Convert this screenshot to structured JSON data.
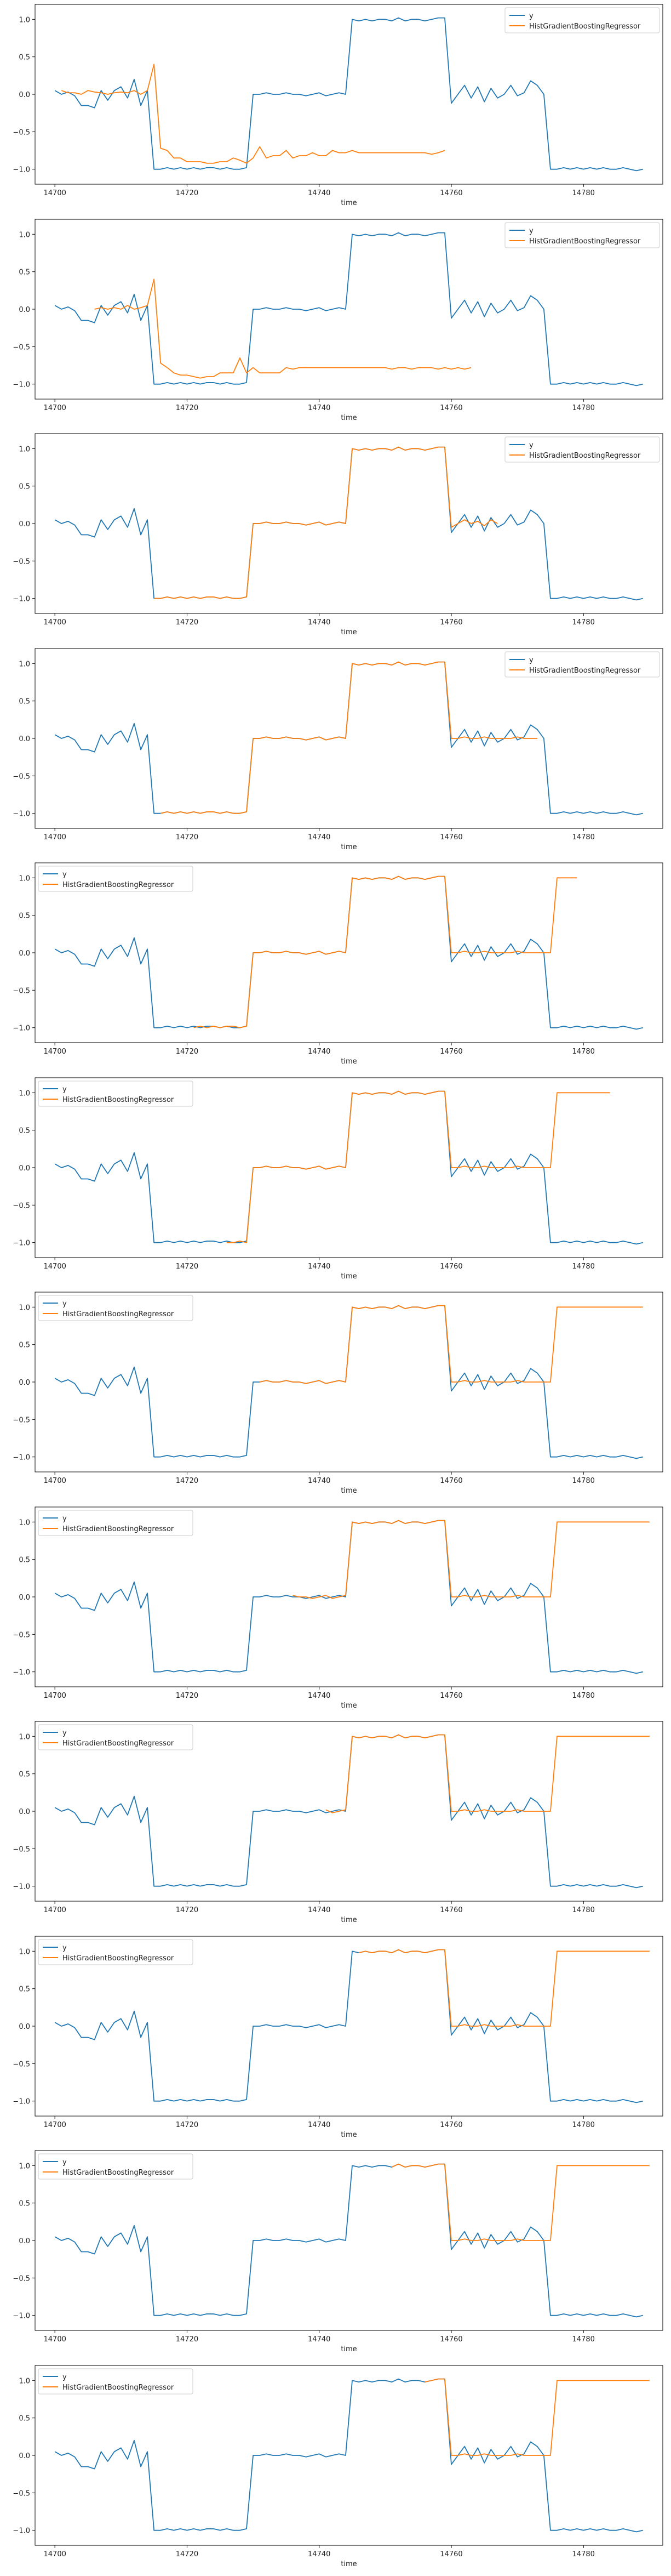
{
  "colors": {
    "y": "#1f77b4",
    "pred": "#ff7f0e"
  },
  "y_series": [
    0.05,
    0.0,
    0.03,
    -0.02,
    -0.15,
    -0.15,
    -0.18,
    0.05,
    -0.08,
    0.05,
    0.1,
    -0.05,
    0.2,
    -0.15,
    0.05,
    -1.0,
    -1.0,
    -0.98,
    -1.0,
    -0.98,
    -1.0,
    -0.98,
    -1.0,
    -0.98,
    -0.98,
    -1.0,
    -0.98,
    -1.0,
    -1.0,
    -0.98,
    0.0,
    0.0,
    0.02,
    0.0,
    0.0,
    0.02,
    0.0,
    0.0,
    -0.02,
    0.0,
    0.02,
    -0.02,
    0.0,
    0.02,
    0.0,
    1.0,
    0.98,
    1.0,
    0.98,
    1.0,
    1.0,
    0.98,
    1.02,
    0.98,
    1.0,
    1.0,
    0.98,
    1.0,
    1.02,
    1.02,
    -0.12,
    0.0,
    0.12,
    -0.05,
    0.1,
    -0.1,
    0.08,
    -0.05,
    0.0,
    0.12,
    -0.02,
    0.02,
    0.18,
    0.12,
    0.0,
    -1.0,
    -1.0,
    -0.98,
    -1.0,
    -0.98,
    -1.0,
    -0.98,
    -1.0,
    -0.98,
    -1.0,
    -1.0,
    -0.98,
    -1.0,
    -1.02,
    -1.0
  ],
  "chart_data": [
    {
      "type": "line",
      "xlabel": "time",
      "legend": "top-right",
      "xlim": [
        14697,
        14792
      ],
      "ylim": [
        -1.2,
        1.2
      ],
      "xticks": [
        14700,
        14720,
        14740,
        14760,
        14780
      ],
      "yticks": [
        -1.0,
        -0.5,
        0.0,
        0.5,
        1.0
      ],
      "series": [
        {
          "name": "y",
          "x_start": 14700,
          "values_ref": "y_series"
        },
        {
          "name": "HistGradientBoostingRegressor",
          "x_start": 14701,
          "values": [
            0.05,
            0.02,
            0.02,
            0.0,
            0.05,
            0.03,
            0.02,
            0.0,
            0.02,
            0.03,
            0.02,
            0.05,
            0.0,
            0.05,
            0.4,
            -0.72,
            -0.75,
            -0.85,
            -0.85,
            -0.9,
            -0.9,
            -0.9,
            -0.92,
            -0.92,
            -0.9,
            -0.9,
            -0.85,
            -0.88,
            -0.92,
            -0.85,
            -0.7,
            -0.85,
            -0.82,
            -0.82,
            -0.75,
            -0.85,
            -0.82,
            -0.82,
            -0.78,
            -0.82,
            -0.82,
            -0.75,
            -0.78,
            -0.78,
            -0.75,
            -0.78,
            -0.78,
            -0.78,
            -0.78,
            -0.78,
            -0.78,
            -0.78,
            -0.78,
            -0.78,
            -0.78,
            -0.78,
            -0.8,
            -0.78,
            -0.75
          ]
        }
      ]
    },
    {
      "type": "line",
      "xlabel": "time",
      "legend": "top-right",
      "xlim": [
        14697,
        14792
      ],
      "ylim": [
        -1.2,
        1.2
      ],
      "xticks": [
        14700,
        14720,
        14740,
        14760,
        14780
      ],
      "yticks": [
        -1.0,
        -0.5,
        0.0,
        0.5,
        1.0
      ],
      "series": [
        {
          "name": "y",
          "x_start": 14700,
          "values_ref": "y_series"
        },
        {
          "name": "HistGradientBoostingRegressor",
          "x_start": 14706,
          "values": [
            0.0,
            0.02,
            0.0,
            0.02,
            0.0,
            0.05,
            0.0,
            0.02,
            0.05,
            0.4,
            -0.72,
            -0.78,
            -0.85,
            -0.88,
            -0.88,
            -0.9,
            -0.92,
            -0.9,
            -0.9,
            -0.85,
            -0.85,
            -0.85,
            -0.65,
            -0.85,
            -0.78,
            -0.85,
            -0.85,
            -0.85,
            -0.85,
            -0.78,
            -0.8,
            -0.78,
            -0.78,
            -0.78,
            -0.78,
            -0.78,
            -0.78,
            -0.78,
            -0.78,
            -0.78,
            -0.78,
            -0.78,
            -0.78,
            -0.78,
            -0.78,
            -0.8,
            -0.78,
            -0.78,
            -0.8,
            -0.78,
            -0.78,
            -0.78,
            -0.8,
            -0.78,
            -0.8,
            -0.78,
            -0.8,
            -0.78
          ]
        }
      ]
    },
    {
      "type": "line",
      "xlabel": "time",
      "legend": "top-right",
      "xlim": [
        14697,
        14792
      ],
      "ylim": [
        -1.2,
        1.2
      ],
      "xticks": [
        14700,
        14720,
        14740,
        14760,
        14780
      ],
      "yticks": [
        -1.0,
        -0.5,
        0.0,
        0.5,
        1.0
      ],
      "series": [
        {
          "name": "y",
          "x_start": 14700,
          "values_ref": "y_series"
        },
        {
          "name": "HistGradientBoostingRegressor",
          "x_start": 14715,
          "values": [
            -1.0,
            -1.0,
            -0.98,
            -1.0,
            -0.98,
            -1.0,
            -0.98,
            -1.0,
            -0.98,
            -0.98,
            -1.0,
            -0.98,
            -1.0,
            -1.0,
            -0.98,
            0.0,
            0.0,
            0.02,
            0.0,
            0.0,
            0.02,
            0.0,
            0.0,
            -0.02,
            0.0,
            0.02,
            -0.02,
            0.0,
            0.02,
            0.0,
            1.0,
            0.98,
            1.0,
            0.98,
            1.0,
            1.0,
            0.98,
            1.02,
            0.98,
            1.0,
            1.0,
            0.98,
            1.0,
            1.02,
            1.02,
            -0.05,
            0.0,
            0.05,
            0.0,
            0.03,
            -0.03,
            0.05,
            0.0
          ]
        }
      ]
    },
    {
      "type": "line",
      "xlabel": "time",
      "legend": "top-right",
      "xlim": [
        14697,
        14792
      ],
      "ylim": [
        -1.2,
        1.2
      ],
      "xticks": [
        14700,
        14720,
        14740,
        14760,
        14780
      ],
      "yticks": [
        -1.0,
        -0.5,
        0.0,
        0.5,
        1.0
      ],
      "series": [
        {
          "name": "y",
          "x_start": 14700,
          "values_ref": "y_series"
        },
        {
          "name": "HistGradientBoostingRegressor",
          "x_start": 14716,
          "values": [
            -1.0,
            -0.98,
            -1.0,
            -0.98,
            -1.0,
            -0.98,
            -1.0,
            -0.98,
            -0.98,
            -1.0,
            -0.98,
            -1.0,
            -1.0,
            -0.98,
            0.0,
            0.0,
            0.02,
            0.0,
            0.0,
            0.02,
            0.0,
            0.0,
            -0.02,
            0.0,
            0.02,
            -0.02,
            0.0,
            0.02,
            0.0,
            1.0,
            0.98,
            1.0,
            0.98,
            1.0,
            1.0,
            0.98,
            1.02,
            0.98,
            1.0,
            1.0,
            0.98,
            1.0,
            1.02,
            1.02,
            0.0,
            0.0,
            0.02,
            0.0,
            0.0,
            0.02,
            0.0,
            0.0,
            0.0,
            0.0,
            0.02,
            0.0,
            0.0,
            0.0
          ]
        }
      ]
    },
    {
      "type": "line",
      "xlabel": "time",
      "legend": "top-left",
      "xlim": [
        14697,
        14792
      ],
      "ylim": [
        -1.2,
        1.2
      ],
      "xticks": [
        14700,
        14720,
        14740,
        14760,
        14780
      ],
      "yticks": [
        -1.0,
        -0.5,
        0.0,
        0.5,
        1.0
      ],
      "series": [
        {
          "name": "y",
          "x_start": 14700,
          "values_ref": "y_series"
        },
        {
          "name": "HistGradientBoostingRegressor",
          "x_start": 14721,
          "values": [
            -1.0,
            -0.98,
            -1.0,
            -0.98,
            -1.0,
            -0.98,
            -0.98,
            -1.0,
            -0.98,
            0.0,
            0.0,
            0.02,
            0.0,
            0.0,
            0.02,
            0.0,
            0.0,
            -0.02,
            0.0,
            0.02,
            -0.02,
            0.0,
            0.02,
            0.0,
            1.0,
            0.98,
            1.0,
            0.98,
            1.0,
            1.0,
            0.98,
            1.02,
            0.98,
            1.0,
            1.0,
            0.98,
            1.0,
            1.02,
            1.02,
            0.0,
            0.0,
            0.02,
            0.0,
            0.0,
            0.02,
            0.0,
            0.0,
            0.0,
            0.0,
            0.02,
            0.0,
            0.0,
            0.0,
            0.0,
            0.0,
            1.0,
            1.0,
            1.0,
            1.0
          ]
        }
      ]
    },
    {
      "type": "line",
      "xlabel": "time",
      "legend": "top-left",
      "xlim": [
        14697,
        14792
      ],
      "ylim": [
        -1.2,
        1.2
      ],
      "xticks": [
        14700,
        14720,
        14740,
        14760,
        14780
      ],
      "yticks": [
        -1.0,
        -0.5,
        0.0,
        0.5,
        1.0
      ],
      "series": [
        {
          "name": "y",
          "x_start": 14700,
          "values_ref": "y_series"
        },
        {
          "name": "HistGradientBoostingRegressor",
          "x_start": 14726,
          "values": [
            -1.0,
            -1.0,
            -0.98,
            -1.0,
            0.0,
            0.0,
            0.02,
            0.0,
            0.0,
            0.02,
            0.0,
            0.0,
            -0.02,
            0.0,
            0.02,
            -0.02,
            0.0,
            0.02,
            0.0,
            1.0,
            0.98,
            1.0,
            0.98,
            1.0,
            1.0,
            0.98,
            1.02,
            0.98,
            1.0,
            1.0,
            0.98,
            1.0,
            1.02,
            1.02,
            0.0,
            0.0,
            0.02,
            0.0,
            0.0,
            0.02,
            0.0,
            0.0,
            0.0,
            0.0,
            0.02,
            0.0,
            0.0,
            0.0,
            0.0,
            0.0,
            1.0,
            1.0,
            1.0,
            1.0,
            1.0,
            1.0,
            1.0,
            1.0,
            1.0
          ]
        }
      ]
    },
    {
      "type": "line",
      "xlabel": "time",
      "legend": "top-left",
      "xlim": [
        14697,
        14792
      ],
      "ylim": [
        -1.2,
        1.2
      ],
      "xticks": [
        14700,
        14720,
        14740,
        14760,
        14780
      ],
      "yticks": [
        -1.0,
        -0.5,
        0.0,
        0.5,
        1.0
      ],
      "series": [
        {
          "name": "y",
          "x_start": 14700,
          "values_ref": "y_series"
        },
        {
          "name": "HistGradientBoostingRegressor",
          "x_start": 14731,
          "values": [
            0.0,
            0.02,
            0.0,
            0.0,
            0.02,
            0.0,
            0.0,
            -0.02,
            0.0,
            0.02,
            -0.02,
            0.0,
            0.02,
            0.0,
            1.0,
            0.98,
            1.0,
            0.98,
            1.0,
            1.0,
            0.98,
            1.02,
            0.98,
            1.0,
            1.0,
            0.98,
            1.0,
            1.02,
            1.02,
            0.0,
            0.0,
            0.02,
            0.0,
            0.0,
            0.02,
            0.0,
            0.0,
            0.0,
            0.0,
            0.02,
            0.0,
            0.0,
            0.0,
            0.0,
            0.0,
            1.0,
            1.0,
            1.0,
            1.0,
            1.0,
            1.0,
            1.0,
            1.0,
            1.0,
            1.0,
            1.0,
            1.0,
            1.0,
            1.0
          ]
        }
      ]
    },
    {
      "type": "line",
      "xlabel": "time",
      "legend": "top-left",
      "xlim": [
        14697,
        14792
      ],
      "ylim": [
        -1.2,
        1.2
      ],
      "xticks": [
        14700,
        14720,
        14740,
        14760,
        14780
      ],
      "yticks": [
        -1.0,
        -0.5,
        0.0,
        0.5,
        1.0
      ],
      "series": [
        {
          "name": "y",
          "x_start": 14700,
          "values_ref": "y_series"
        },
        {
          "name": "HistGradientBoostingRegressor",
          "x_start": 14736,
          "values": [
            0.02,
            0.0,
            0.0,
            -0.02,
            0.0,
            0.02,
            -0.02,
            0.0,
            0.02,
            1.0,
            0.98,
            1.0,
            0.98,
            1.0,
            1.0,
            0.98,
            1.02,
            0.98,
            1.0,
            1.0,
            0.98,
            1.0,
            1.02,
            1.02,
            0.0,
            0.0,
            0.02,
            0.0,
            0.0,
            0.02,
            0.0,
            0.0,
            0.0,
            0.0,
            0.02,
            0.0,
            0.0,
            0.0,
            0.0,
            0.0,
            1.0,
            1.0,
            1.0,
            1.0,
            1.0,
            1.0,
            1.0,
            1.0,
            1.0,
            1.0,
            1.0,
            1.0,
            1.0,
            1.0,
            1.0
          ]
        }
      ]
    },
    {
      "type": "line",
      "xlabel": "time",
      "legend": "top-left",
      "xlim": [
        14697,
        14792
      ],
      "ylim": [
        -1.2,
        1.2
      ],
      "xticks": [
        14700,
        14720,
        14740,
        14760,
        14780
      ],
      "yticks": [
        -1.0,
        -0.5,
        0.0,
        0.5,
        1.0
      ],
      "series": [
        {
          "name": "y",
          "x_start": 14700,
          "values_ref": "y_series"
        },
        {
          "name": "HistGradientBoostingRegressor",
          "x_start": 14741,
          "values": [
            0.02,
            -0.02,
            0.0,
            0.02,
            1.0,
            0.98,
            1.0,
            0.98,
            1.0,
            1.0,
            0.98,
            1.02,
            0.98,
            1.0,
            1.0,
            0.98,
            1.0,
            1.02,
            1.02,
            0.0,
            0.0,
            0.02,
            0.0,
            0.0,
            0.02,
            0.0,
            0.0,
            0.0,
            0.0,
            0.02,
            0.0,
            0.0,
            0.0,
            0.0,
            0.0,
            1.0,
            1.0,
            1.0,
            1.0,
            1.0,
            1.0,
            1.0,
            1.0,
            1.0,
            1.0,
            1.0,
            1.0,
            1.0,
            1.0,
            1.0
          ]
        }
      ]
    },
    {
      "type": "line",
      "xlabel": "time",
      "legend": "top-left",
      "xlim": [
        14697,
        14792
      ],
      "ylim": [
        -1.2,
        1.2
      ],
      "xticks": [
        14700,
        14720,
        14740,
        14760,
        14780
      ],
      "yticks": [
        -1.0,
        -0.5,
        0.0,
        0.5,
        1.0
      ],
      "series": [
        {
          "name": "y",
          "x_start": 14700,
          "values_ref": "y_series"
        },
        {
          "name": "HistGradientBoostingRegressor",
          "x_start": 14746,
          "values": [
            0.98,
            1.0,
            0.98,
            1.0,
            1.0,
            0.98,
            1.02,
            0.98,
            1.0,
            1.0,
            0.98,
            1.0,
            1.02,
            1.02,
            0.0,
            0.0,
            0.02,
            0.0,
            0.0,
            0.02,
            0.0,
            0.0,
            0.0,
            0.0,
            0.02,
            0.0,
            0.0,
            0.0,
            0.0,
            0.0,
            1.0,
            1.0,
            1.0,
            1.0,
            1.0,
            1.0,
            1.0,
            1.0,
            1.0,
            1.0,
            1.0,
            1.0,
            1.0,
            1.0,
            1.0
          ]
        }
      ]
    },
    {
      "type": "line",
      "xlabel": "time",
      "legend": "top-left",
      "xlim": [
        14697,
        14792
      ],
      "ylim": [
        -1.2,
        1.2
      ],
      "xticks": [
        14700,
        14720,
        14740,
        14760,
        14780
      ],
      "yticks": [
        -1.0,
        -0.5,
        0.0,
        0.5,
        1.0
      ],
      "series": [
        {
          "name": "y",
          "x_start": 14700,
          "values_ref": "y_series"
        },
        {
          "name": "HistGradientBoostingRegressor",
          "x_start": 14751,
          "values": [
            0.98,
            1.02,
            0.98,
            1.0,
            1.0,
            0.98,
            1.0,
            1.02,
            1.02,
            0.0,
            0.0,
            0.02,
            0.0,
            0.0,
            0.02,
            0.0,
            0.0,
            0.0,
            0.0,
            0.02,
            0.0,
            0.0,
            0.0,
            0.0,
            0.0,
            1.0,
            1.0,
            1.0,
            1.0,
            1.0,
            1.0,
            1.0,
            1.0,
            1.0,
            1.0,
            1.0,
            1.0,
            1.0,
            1.0,
            1.0
          ]
        }
      ]
    },
    {
      "type": "line",
      "xlabel": "time",
      "legend": "top-left",
      "xlim": [
        14697,
        14792
      ],
      "ylim": [
        -1.2,
        1.2
      ],
      "xticks": [
        14700,
        14720,
        14740,
        14760,
        14780
      ],
      "yticks": [
        -1.0,
        -0.5,
        0.0,
        0.5,
        1.0
      ],
      "series": [
        {
          "name": "y",
          "x_start": 14700,
          "values_ref": "y_series"
        },
        {
          "name": "HistGradientBoostingRegressor",
          "x_start": 14756,
          "values": [
            0.98,
            1.0,
            1.02,
            1.02,
            0.0,
            0.0,
            0.02,
            0.0,
            0.0,
            0.02,
            0.0,
            0.0,
            0.0,
            0.0,
            0.02,
            0.0,
            0.0,
            0.0,
            0.0,
            0.0,
            1.0,
            1.0,
            1.0,
            1.0,
            1.0,
            1.0,
            1.0,
            1.0,
            1.0,
            1.0,
            1.0,
            1.0,
            1.0,
            1.0,
            1.0
          ]
        }
      ]
    }
  ]
}
